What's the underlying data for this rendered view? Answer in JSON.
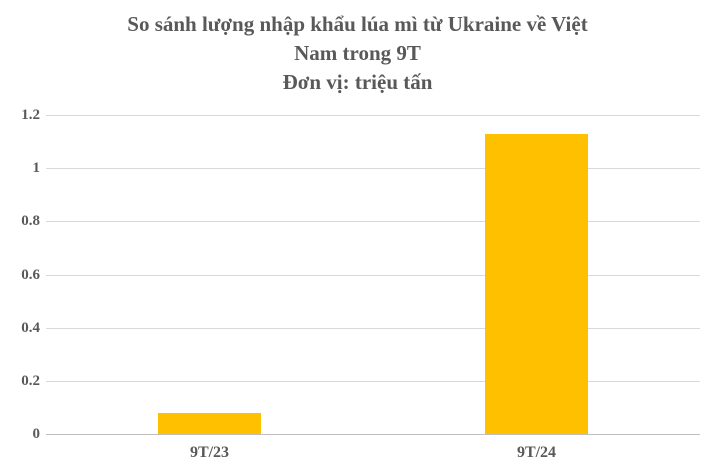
{
  "title": {
    "lines": [
      "So sánh lượng nhập khẩu lúa mì từ Ukraine về Việt",
      "Nam trong 9T",
      "Đơn vị: triệu tấn"
    ]
  },
  "chart_data": {
    "type": "bar",
    "title": "So sánh lượng nhập khẩu lúa mì từ Ukraine về Việt Nam trong 9T",
    "subtitle": "Đơn vị: triệu tấn",
    "categories": [
      "9T/23",
      "9T/24"
    ],
    "values": [
      0.08,
      1.13
    ],
    "xlabel": "",
    "ylabel": "",
    "ylim": [
      0,
      1.2
    ],
    "ytick_step": 0.2,
    "yticks": [
      "0",
      "0.2",
      "0.4",
      "0.6",
      "0.8",
      "1",
      "1.2"
    ],
    "grid": true,
    "legend": "none",
    "bar_color": "#FFC000"
  },
  "colors": {
    "bar": "#FFC000",
    "gridline": "#D9D9D9",
    "axis_line": "#BFBFBF",
    "text": "#595959",
    "background": "#FFFFFF"
  }
}
